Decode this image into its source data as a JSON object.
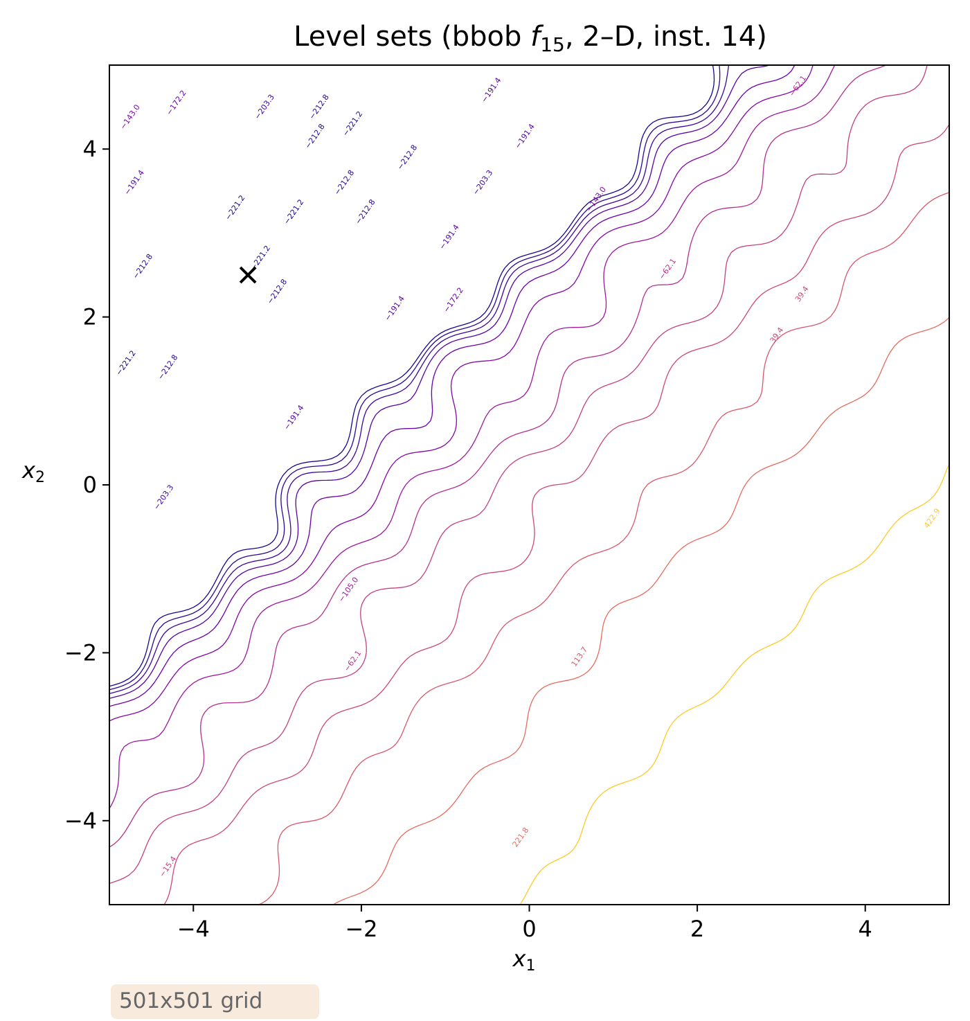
{
  "chart_data": {
    "type": "contour",
    "title_main": "Level sets (bbob ",
    "title_fn": "f",
    "title_fn_sub": "15",
    "title_tail": ", 2–D, inst. 14)",
    "xlabel_main": "x",
    "xlabel_sub": "1",
    "ylabel_main": "x",
    "ylabel_sub": "2",
    "xlim": [
      -5,
      5
    ],
    "ylim": [
      -5,
      5
    ],
    "xticks": [
      -4,
      -2,
      0,
      2,
      4
    ],
    "yticks": [
      -4,
      -2,
      0,
      2,
      4
    ],
    "xtick_labels": [
      "−4",
      "−2",
      "0",
      "2",
      "4"
    ],
    "ytick_labels": [
      "−4",
      "−2",
      "0",
      "2",
      "4"
    ],
    "colormap": "plasma",
    "levels": [
      -221.2,
      -212.8,
      -203.3,
      -191.4,
      -172.2,
      -143.0,
      -105.0,
      -62.1,
      -15.4,
      39.4,
      113.7,
      221.8,
      422.9
    ],
    "level_colors": [
      "#14068e",
      "#2a0594",
      "#3b049a",
      "#5402a3",
      "#6a00a8",
      "#8305a7",
      "#9c179e",
      "#b52f8c",
      "#c33f81",
      "#cc4778",
      "#d8576b",
      "#e56b5d",
      "#fdca26"
    ],
    "contour_labels": [
      {
        "text": "−143.0",
        "x": -4.75,
        "y": 4.38,
        "level": -143.0
      },
      {
        "text": "−172.2",
        "x": -4.2,
        "y": 4.55,
        "level": -172.2
      },
      {
        "text": "−191.4",
        "x": -4.7,
        "y": 3.6,
        "level": -191.4
      },
      {
        "text": "−203.3",
        "x": -3.15,
        "y": 4.5,
        "level": -203.3
      },
      {
        "text": "−212.8",
        "x": -2.5,
        "y": 4.5,
        "level": -212.8
      },
      {
        "text": "−221.2",
        "x": -2.1,
        "y": 4.3,
        "level": -221.2
      },
      {
        "text": "−212.8",
        "x": -2.55,
        "y": 4.15,
        "level": -212.8
      },
      {
        "text": "−212.8",
        "x": -1.45,
        "y": 3.9,
        "level": -212.8
      },
      {
        "text": "−212.8",
        "x": -2.2,
        "y": 3.6,
        "level": -212.8
      },
      {
        "text": "−221.2",
        "x": -3.5,
        "y": 3.3,
        "level": -221.2
      },
      {
        "text": "−221.2",
        "x": -2.8,
        "y": 3.25,
        "level": -221.2
      },
      {
        "text": "−212.8",
        "x": -1.95,
        "y": 3.25,
        "level": -212.8
      },
      {
        "text": "−221.2",
        "x": -3.2,
        "y": 2.7,
        "level": -221.2
      },
      {
        "text": "−203.3",
        "x": -0.55,
        "y": 3.6,
        "level": -203.3
      },
      {
        "text": "−191.4",
        "x": -0.05,
        "y": 4.15,
        "level": -191.4
      },
      {
        "text": "−191.4",
        "x": -0.45,
        "y": 4.7,
        "level": -191.4
      },
      {
        "text": "−143.0",
        "x": 0.8,
        "y": 3.4,
        "level": -143.0
      },
      {
        "text": "−191.4",
        "x": -0.95,
        "y": 2.95,
        "level": -191.4
      },
      {
        "text": "−172.2",
        "x": -0.9,
        "y": 2.2,
        "level": -172.2
      },
      {
        "text": "−191.4",
        "x": -1.6,
        "y": 2.1,
        "level": -191.4
      },
      {
        "text": "−212.8",
        "x": -4.6,
        "y": 2.6,
        "level": -212.8
      },
      {
        "text": "−212.8",
        "x": -3.0,
        "y": 2.3,
        "level": -212.8
      },
      {
        "text": "−212.8",
        "x": -4.3,
        "y": 1.4,
        "level": -212.8
      },
      {
        "text": "−221.2",
        "x": -4.8,
        "y": 1.45,
        "level": -221.2
      },
      {
        "text": "−191.4",
        "x": -2.8,
        "y": 0.8,
        "level": -191.4
      },
      {
        "text": "−203.3",
        "x": -4.35,
        "y": -0.15,
        "level": -203.3
      },
      {
        "text": "−105.0",
        "x": -2.15,
        "y": -1.25,
        "level": -105.0
      },
      {
        "text": "−62.1",
        "x": -2.1,
        "y": -2.1,
        "level": -62.1
      },
      {
        "text": "−62.1",
        "x": 1.65,
        "y": 2.57,
        "level": -62.1
      },
      {
        "text": "−62.1",
        "x": 3.2,
        "y": 4.75,
        "level": -62.1
      },
      {
        "text": "39.4",
        "x": 2.95,
        "y": 1.78,
        "level": 39.4
      },
      {
        "text": "39.4",
        "x": 3.25,
        "y": 2.27,
        "level": 39.4
      },
      {
        "text": "113.7",
        "x": 0.6,
        "y": -2.05,
        "level": 113.7
      },
      {
        "text": "221.8",
        "x": -0.1,
        "y": -4.2,
        "level": 221.8
      },
      {
        "text": "422.9",
        "x": 4.8,
        "y": -0.4,
        "level": 422.9
      },
      {
        "text": "−15.4",
        "x": -4.3,
        "y": -4.55,
        "level": -15.4
      }
    ],
    "optimum_marker": {
      "x": -3.35,
      "y": 2.5,
      "symbol": "x",
      "color": "#000000"
    },
    "annotation": "501x501 grid"
  }
}
